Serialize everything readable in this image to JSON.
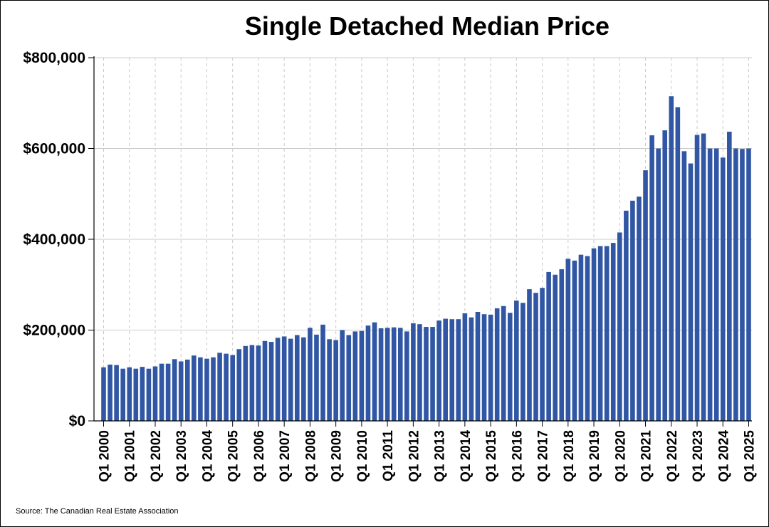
{
  "title": "Single Detached Median Price",
  "source": "Source: The Canadian Real Estate Association",
  "chart_data": {
    "type": "bar",
    "title": "Single Detached Median Price",
    "xlabel": "",
    "ylabel": "",
    "ylim": [
      0,
      800000
    ],
    "y_ticks": [
      0,
      200000,
      400000,
      600000,
      800000
    ],
    "y_tick_labels": [
      "$0",
      "$200,000",
      "$400,000",
      "$600,000",
      "$800,000"
    ],
    "x_tick_labels": [
      "Q1 2000",
      "Q1 2001",
      "Q1 2002",
      "Q1 2003",
      "Q1 2004",
      "Q1 2005",
      "Q1 2006",
      "Q1 2007",
      "Q1 2008",
      "Q1 2009",
      "Q1 2010",
      "Q1 2011",
      "Q1 2012",
      "Q1 2013",
      "Q1 2014",
      "Q1 2015",
      "Q1 2016",
      "Q1 2017",
      "Q1 2018",
      "Q1 2019",
      "Q1 2020",
      "Q1 2021",
      "Q1 2022",
      "Q1 2023",
      "Q1 2024",
      "Q1 2025"
    ],
    "grid": {
      "horizontal": true,
      "vertical": "dashed"
    },
    "bar_color": "#3056a4",
    "series": [
      {
        "values": [
          118000,
          124000,
          123000,
          115000,
          118000,
          115000,
          119000,
          115000,
          120000,
          126000,
          126000,
          136000,
          131000,
          135000,
          144000,
          140000,
          137000,
          140000,
          150000,
          148000,
          145000,
          158000,
          165000,
          167000,
          166000,
          176000,
          174000,
          183000,
          186000,
          181000,
          189000,
          184000,
          205000,
          190000,
          212000,
          180000,
          178000,
          200000,
          189000,
          197000,
          198000,
          210000,
          217000,
          204000,
          205000,
          206000,
          205000,
          197000,
          215000,
          213000,
          207000,
          207000,
          221000,
          225000,
          224000,
          224000,
          237000,
          228000,
          240000,
          235000,
          234000,
          248000,
          253000,
          238000,
          265000,
          260000,
          290000,
          282000,
          293000,
          328000,
          322000,
          334000,
          357000,
          353000,
          366000,
          363000,
          380000,
          385000,
          385000,
          392000,
          415000,
          463000,
          485000,
          494000,
          552000,
          629000,
          600000,
          640000,
          715000,
          691000,
          594000,
          567000,
          630000,
          633000,
          600000,
          600000,
          580000,
          637000,
          600000,
          599000,
          600000
        ]
      }
    ]
  }
}
